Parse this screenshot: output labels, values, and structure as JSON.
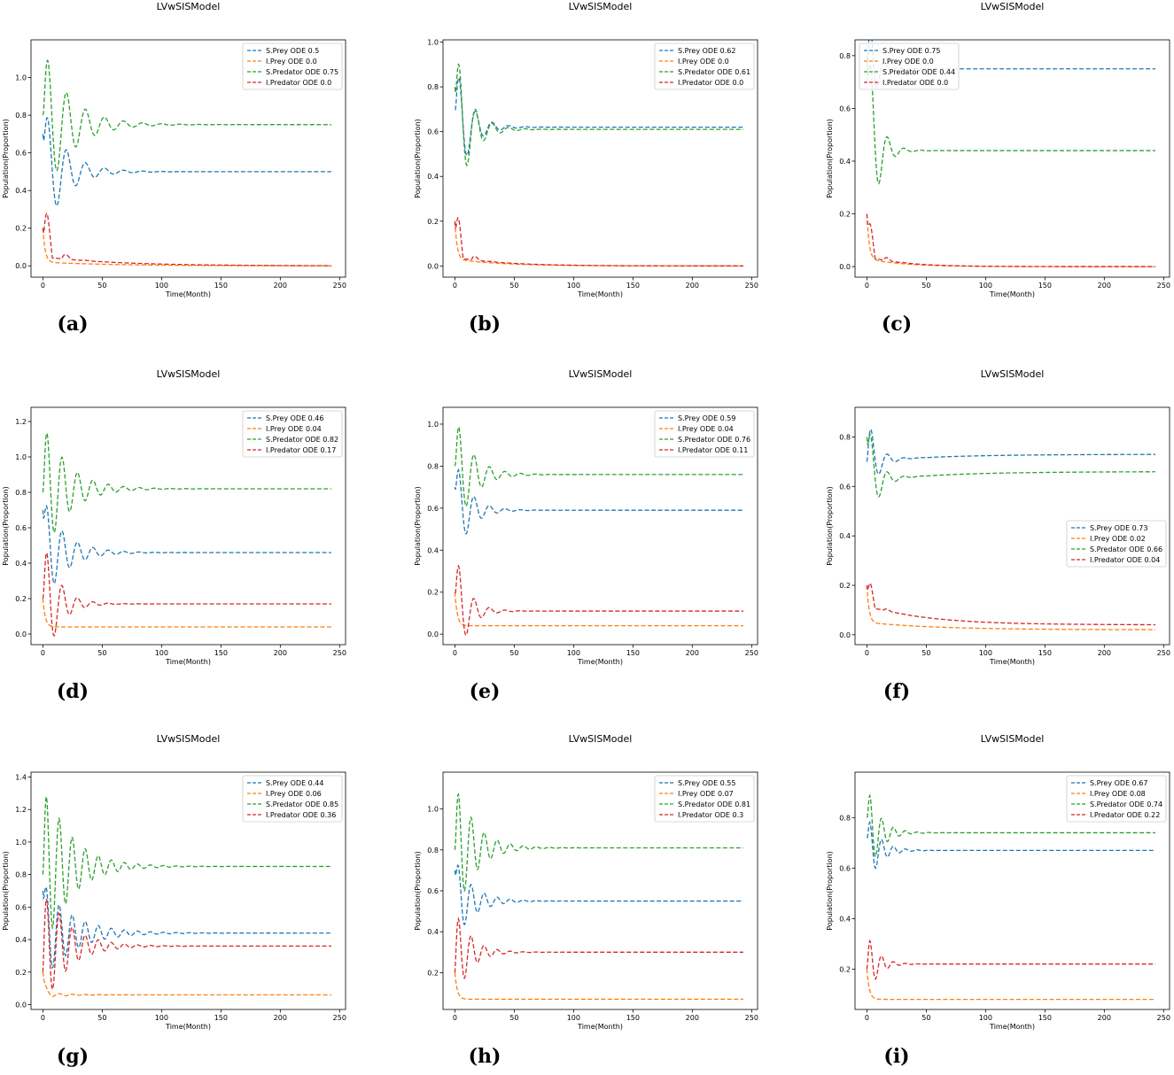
{
  "figure": {
    "colors": {
      "s_prey": "#1f77b4",
      "i_prey": "#ff7f0e",
      "s_predator": "#2ca02c",
      "i_predator": "#d62728"
    }
  },
  "chart_data": [
    {
      "panel": "(a)",
      "type": "line",
      "title": "LVwSISModel",
      "xlabel": "Time(Month)",
      "ylabel": "Population(Proportion)",
      "xlim": [
        -10,
        255
      ],
      "ylim": [
        -0.06,
        1.2
      ],
      "xticks": [
        0,
        50,
        100,
        150,
        200,
        250
      ],
      "yticks": [
        0.0,
        0.2,
        0.4,
        0.6,
        0.8,
        1.0
      ],
      "ytick_decimals": 1,
      "legend_loc": "top-right",
      "series": [
        {
          "name": "S.Prey ODE 0.5",
          "key": "s_prey",
          "start": 0.7,
          "eq": 0.5,
          "amp": 0.35,
          "period": 16,
          "decay": 18
        },
        {
          "name": "I.Prey ODE 0.0",
          "key": "i_prey",
          "start": 0.2,
          "eq": 0.0,
          "amp": 0.0,
          "period": 16,
          "decay": 15,
          "tail": 0.02,
          "tailDecay": 60,
          "fast": 2
        },
        {
          "name": "S.Predator ODE 0.75",
          "key": "s_predator",
          "start": 0.8,
          "eq": 0.75,
          "amp": 0.42,
          "period": 16,
          "decay": 22
        },
        {
          "name": "I.Predator ODE 0.0",
          "key": "i_predator",
          "start": 0.2,
          "eq": 0.0,
          "amp": 0.4,
          "period": 16,
          "decay": 7,
          "tail": 0.05,
          "tailDecay": 60,
          "pos": true
        }
      ]
    },
    {
      "panel": "(b)",
      "type": "line",
      "title": "LVwSISModel",
      "xlabel": "Time(Month)",
      "ylabel": "Population(Proportion)",
      "xlim": [
        -10,
        255
      ],
      "ylim": [
        -0.05,
        1.01
      ],
      "xticks": [
        0,
        50,
        100,
        150,
        200,
        250
      ],
      "yticks": [
        0.0,
        0.2,
        0.4,
        0.6,
        0.8,
        1.0
      ],
      "ytick_decimals": 1,
      "legend_loc": "top-right",
      "series": [
        {
          "name": "S.Prey ODE 0.62",
          "key": "s_prey",
          "start": 0.7,
          "eq": 0.62,
          "amp": 0.3,
          "period": 14,
          "decay": 12
        },
        {
          "name": "I.Prey ODE 0.0",
          "key": "i_prey",
          "start": 0.2,
          "eq": 0.0,
          "amp": 0.0,
          "period": 14,
          "decay": 12,
          "tail": 0.03,
          "tailDecay": 40,
          "fast": 2
        },
        {
          "name": "S.Predator ODE 0.61",
          "key": "s_predator",
          "start": 0.8,
          "eq": 0.61,
          "amp": 0.38,
          "period": 14,
          "decay": 12
        },
        {
          "name": "I.Predator ODE 0.0",
          "key": "i_predator",
          "start": 0.2,
          "eq": 0.0,
          "amp": 0.3,
          "period": 14,
          "decay": 6,
          "tail": 0.04,
          "tailDecay": 40,
          "pos": true
        }
      ]
    },
    {
      "panel": "(c)",
      "type": "line",
      "title": "LVwSISModel",
      "xlabel": "Time(Month)",
      "ylabel": "Population(Proportion)",
      "xlim": [
        -10,
        255
      ],
      "ylim": [
        -0.04,
        0.86
      ],
      "xticks": [
        0,
        50,
        100,
        150,
        200,
        250
      ],
      "yticks": [
        0.0,
        0.2,
        0.4,
        0.6,
        0.8
      ],
      "ytick_decimals": 1,
      "legend_loc": "top-left",
      "series": [
        {
          "name": "S.Prey ODE 0.75",
          "key": "s_prey",
          "start": 0.7,
          "eq": 0.75,
          "amp": 0.3,
          "period": 12,
          "decay": 6
        },
        {
          "name": "I.Prey ODE 0.0",
          "key": "i_prey",
          "start": 0.2,
          "eq": 0.0,
          "amp": 0.0,
          "period": 12,
          "decay": 10,
          "tail": 0.03,
          "tailDecay": 30,
          "fast": 2
        },
        {
          "name": "S.Predator ODE 0.44",
          "key": "s_predator",
          "start": 0.8,
          "eq": 0.44,
          "amp": 0.45,
          "period": 14,
          "decay": 8
        },
        {
          "name": "I.Predator ODE 0.0",
          "key": "i_predator",
          "start": 0.2,
          "eq": 0.0,
          "amp": 0.2,
          "period": 14,
          "decay": 6,
          "tail": 0.04,
          "tailDecay": 30,
          "pos": true
        }
      ]
    },
    {
      "panel": "(d)",
      "type": "line",
      "title": "LVwSISModel",
      "xlabel": "Time(Month)",
      "ylabel": "Population(Proportion)",
      "xlim": [
        -10,
        255
      ],
      "ylim": [
        -0.06,
        1.28
      ],
      "xticks": [
        0,
        50,
        100,
        150,
        200,
        250
      ],
      "yticks": [
        0.0,
        0.2,
        0.4,
        0.6,
        0.8,
        1.0,
        1.2
      ],
      "ytick_decimals": 1,
      "legend_loc": "top-right",
      "series": [
        {
          "name": "S.Prey ODE 0.46",
          "key": "s_prey",
          "start": 0.7,
          "eq": 0.46,
          "amp": 0.3,
          "period": 13,
          "decay": 18
        },
        {
          "name": "I.Prey ODE 0.04",
          "key": "i_prey",
          "start": 0.2,
          "eq": 0.04,
          "amp": 0.0,
          "period": 13,
          "decay": 12,
          "fast": 2
        },
        {
          "name": "S.Predator ODE 0.82",
          "key": "s_predator",
          "start": 0.8,
          "eq": 0.82,
          "amp": 0.4,
          "period": 13,
          "decay": 20
        },
        {
          "name": "I.Predator ODE 0.17",
          "key": "i_predator",
          "start": 0.2,
          "eq": 0.17,
          "amp": 0.4,
          "period": 13,
          "decay": 12
        }
      ]
    },
    {
      "panel": "(e)",
      "type": "line",
      "title": "LVwSISModel",
      "xlabel": "Time(Month)",
      "ylabel": "Population(Proportion)",
      "xlim": [
        -10,
        255
      ],
      "ylim": [
        -0.05,
        1.08
      ],
      "xticks": [
        0,
        50,
        100,
        150,
        200,
        250
      ],
      "yticks": [
        0.0,
        0.2,
        0.4,
        0.6,
        0.8,
        1.0
      ],
      "ytick_decimals": 1,
      "legend_loc": "top-right",
      "series": [
        {
          "name": "S.Prey ODE 0.59",
          "key": "s_prey",
          "start": 0.7,
          "eq": 0.59,
          "amp": 0.25,
          "period": 13,
          "decay": 12
        },
        {
          "name": "I.Prey ODE 0.04",
          "key": "i_prey",
          "start": 0.2,
          "eq": 0.04,
          "amp": 0.0,
          "period": 13,
          "decay": 10,
          "fast": 2
        },
        {
          "name": "S.Predator ODE 0.76",
          "key": "s_predator",
          "start": 0.8,
          "eq": 0.76,
          "amp": 0.3,
          "period": 13,
          "decay": 14
        },
        {
          "name": "I.Predator ODE 0.11",
          "key": "i_predator",
          "start": 0.2,
          "eq": 0.11,
          "amp": 0.3,
          "period": 13,
          "decay": 10
        }
      ]
    },
    {
      "panel": "(f)",
      "type": "line",
      "title": "LVwSISModel",
      "xlabel": "Time(Month)",
      "ylabel": "Population(Proportion)",
      "xlim": [
        -10,
        255
      ],
      "ylim": [
        -0.04,
        0.92
      ],
      "xticks": [
        0,
        50,
        100,
        150,
        200,
        250
      ],
      "yticks": [
        0.0,
        0.2,
        0.4,
        0.6,
        0.8
      ],
      "ytick_decimals": 1,
      "legend_loc": "center-right",
      "series": [
        {
          "name": "S.Prey ODE 0.73",
          "key": "s_prey",
          "start": 0.7,
          "eq": 0.73,
          "amp": 0.2,
          "period": 14,
          "decay": 8,
          "tail": -0.03,
          "tailDecay": 60
        },
        {
          "name": "I.Prey ODE 0.02",
          "key": "i_prey",
          "start": 0.2,
          "eq": 0.02,
          "amp": 0.0,
          "period": 14,
          "decay": 10,
          "tail": 0.03,
          "tailDecay": 60,
          "fast": 2
        },
        {
          "name": "S.Predator ODE 0.66",
          "key": "s_predator",
          "start": 0.8,
          "eq": 0.66,
          "amp": 0.25,
          "period": 14,
          "decay": 8,
          "tail": -0.04,
          "tailDecay": 60
        },
        {
          "name": "I.Predator ODE 0.04",
          "key": "i_predator",
          "start": 0.2,
          "eq": 0.04,
          "amp": 0.2,
          "period": 14,
          "decay": 5,
          "tail": 0.08,
          "tailDecay": 50,
          "pos": true
        }
      ]
    },
    {
      "panel": "(g)",
      "type": "line",
      "title": "LVwSISModel",
      "xlabel": "Time(Month)",
      "ylabel": "Population(Proportion)",
      "xlim": [
        -10,
        255
      ],
      "ylim": [
        -0.03,
        1.43
      ],
      "xticks": [
        0,
        50,
        100,
        150,
        200,
        250
      ],
      "yticks": [
        0.0,
        0.2,
        0.4,
        0.6,
        0.8,
        1.0,
        1.2,
        1.4
      ],
      "ytick_decimals": 1,
      "legend_loc": "top-right",
      "series": [
        {
          "name": "S.Prey ODE 0.44",
          "key": "s_prey",
          "start": 0.7,
          "eq": 0.44,
          "amp": 0.3,
          "period": 11,
          "decay": 25
        },
        {
          "name": "I.Prey ODE 0.06",
          "key": "i_prey",
          "start": 0.2,
          "eq": 0.06,
          "amp": 0.02,
          "period": 11,
          "decay": 15,
          "fast": 2
        },
        {
          "name": "S.Predator ODE 0.85",
          "key": "s_predator",
          "start": 0.8,
          "eq": 0.85,
          "amp": 0.55,
          "period": 11,
          "decay": 22
        },
        {
          "name": "I.Predator ODE 0.36",
          "key": "i_predator",
          "start": 0.2,
          "eq": 0.36,
          "amp": 0.4,
          "period": 11,
          "decay": 20
        }
      ]
    },
    {
      "panel": "(h)",
      "type": "line",
      "title": "LVwSISModel",
      "xlabel": "Time(Month)",
      "ylabel": "Population(Proportion)",
      "xlim": [
        -10,
        255
      ],
      "ylim": [
        0.02,
        1.18
      ],
      "xticks": [
        0,
        50,
        100,
        150,
        200,
        250
      ],
      "yticks": [
        0.2,
        0.4,
        0.6,
        0.8,
        1.0
      ],
      "ytick_decimals": 1,
      "legend_loc": "top-right",
      "series": [
        {
          "name": "S.Prey ODE 0.55",
          "key": "s_prey",
          "start": 0.7,
          "eq": 0.55,
          "amp": 0.2,
          "period": 11,
          "decay": 15
        },
        {
          "name": "I.Prey ODE 0.07",
          "key": "i_prey",
          "start": 0.2,
          "eq": 0.07,
          "amp": 0.0,
          "period": 11,
          "decay": 10,
          "fast": 2
        },
        {
          "name": "S.Predator ODE 0.81",
          "key": "s_predator",
          "start": 0.8,
          "eq": 0.81,
          "amp": 0.35,
          "period": 11,
          "decay": 16
        },
        {
          "name": "I.Predator ODE 0.3",
          "key": "i_predator",
          "start": 0.2,
          "eq": 0.3,
          "amp": 0.25,
          "period": 11,
          "decay": 12
        }
      ]
    },
    {
      "panel": "(i)",
      "type": "line",
      "title": "LVwSISModel",
      "xlabel": "Time(Month)",
      "ylabel": "Population(Proportion)",
      "xlim": [
        -10,
        255
      ],
      "ylim": [
        0.04,
        0.98
      ],
      "xticks": [
        0,
        50,
        100,
        150,
        200,
        250
      ],
      "yticks": [
        0.2,
        0.4,
        0.6,
        0.8
      ],
      "ytick_decimals": 1,
      "legend_loc": "top-right",
      "series": [
        {
          "name": "S.Prey ODE 0.67",
          "key": "s_prey",
          "start": 0.72,
          "eq": 0.67,
          "amp": 0.15,
          "period": 10,
          "decay": 10
        },
        {
          "name": "I.Prey ODE 0.08",
          "key": "i_prey",
          "start": 0.2,
          "eq": 0.08,
          "amp": 0.0,
          "period": 10,
          "decay": 8,
          "fast": 2
        },
        {
          "name": "S.Predator ODE 0.74",
          "key": "s_predator",
          "start": 0.8,
          "eq": 0.74,
          "amp": 0.2,
          "period": 10,
          "decay": 10
        },
        {
          "name": "I.Predator ODE 0.22",
          "key": "i_predator",
          "start": 0.2,
          "eq": 0.22,
          "amp": 0.15,
          "period": 10,
          "decay": 8
        }
      ]
    }
  ]
}
